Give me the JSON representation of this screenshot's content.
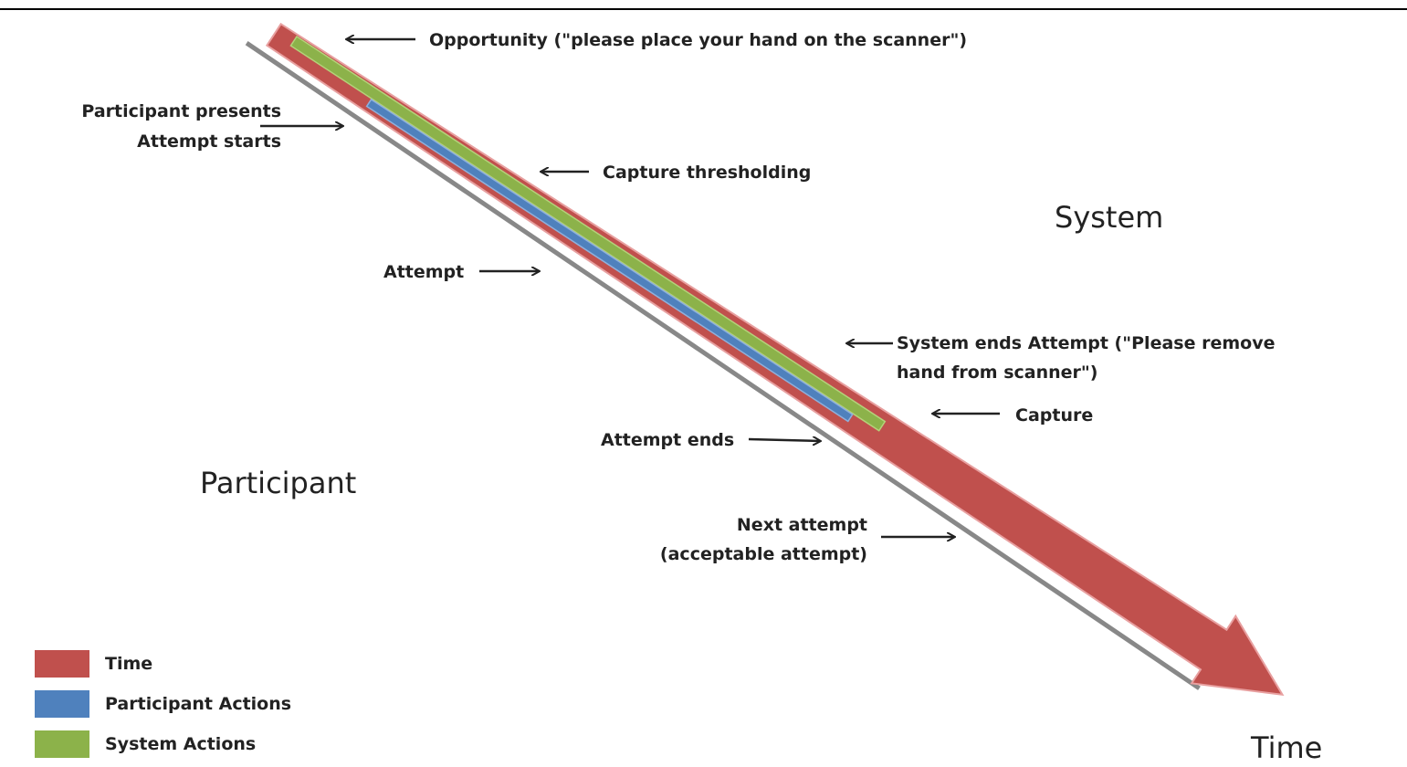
{
  "regions": {
    "system": "System",
    "participant": "Participant",
    "time": "Time"
  },
  "annotations": [
    {
      "lines": [
        "Opportunity (\"please place your hand on the scanner\")"
      ]
    },
    {
      "lines": [
        "Participant presents",
        "Attempt starts"
      ]
    },
    {
      "lines": [
        "Capture thresholding"
      ]
    },
    {
      "lines": [
        "Attempt"
      ]
    },
    {
      "lines": [
        "System ends Attempt (\"Please remove",
        "hand from scanner\")"
      ]
    },
    {
      "lines": [
        "Capture"
      ]
    },
    {
      "lines": [
        "Attempt ends"
      ]
    },
    {
      "lines": [
        "Next attempt",
        "(acceptable attempt)"
      ]
    }
  ],
  "legend": [
    "Time",
    "Participant Actions",
    "System Actions"
  ]
}
